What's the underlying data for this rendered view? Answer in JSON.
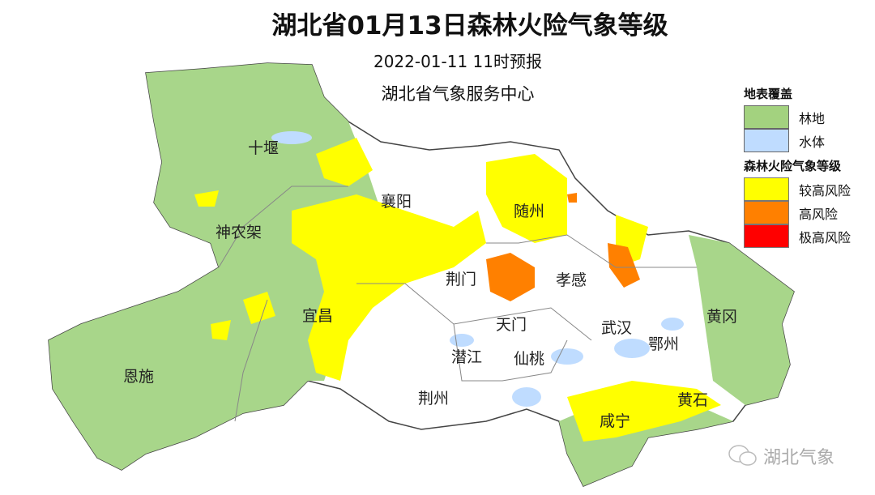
{
  "title": "湖北省01月13日森林火险气象等级",
  "issued": "2022-01-11 11时预报",
  "agency": "湖北省气象服务中心",
  "colors": {
    "forest": "#9fd17f",
    "water": "#bfdcff",
    "higher_risk": "#ffff00",
    "high_risk": "#ff8000",
    "extreme_risk": "#ff0000"
  },
  "legend": {
    "land_cover_title": "地表覆盖",
    "land_cover": [
      {
        "label": "林地",
        "color": "#a3d27f"
      },
      {
        "label": "水体",
        "color": "#bfdcff"
      }
    ],
    "risk_title": "森林火险气象等级",
    "risk": [
      {
        "label": "较高风险",
        "color": "#ffff00"
      },
      {
        "label": "高风险",
        "color": "#ff8000"
      },
      {
        "label": "极高风险",
        "color": "#ff0000"
      }
    ]
  },
  "cities": [
    "十堰",
    "襄阳",
    "随州",
    "神农架",
    "荆门",
    "孝感",
    "宜昌",
    "天门",
    "武汉",
    "鄂州",
    "黄冈",
    "潜江",
    "仙桃",
    "恩施",
    "荆州",
    "黄石",
    "咸宁"
  ],
  "watermark": "湖北气象"
}
